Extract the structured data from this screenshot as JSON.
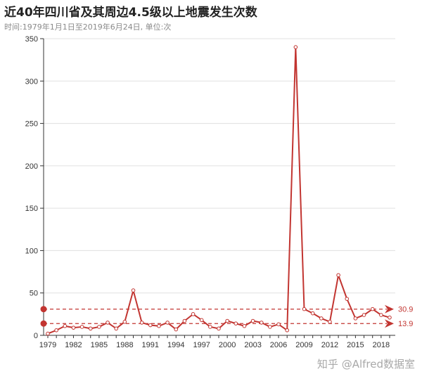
{
  "header": {
    "title": "近40年四川省及其周边4.5级以上地震发生次数",
    "subtitle": "时间:1979年1月1日至2019年6月24日, 单位:次"
  },
  "watermark": "知乎 @Alfred数据室",
  "colors": {
    "series": "#c23531",
    "grid": "#e0e0e0",
    "axis": "#333333"
  },
  "chart_data": {
    "type": "line",
    "title": "近40年四川省及其周边4.5级以上地震发生次数",
    "subtitle": "时间:1979年1月1日至2019年6月24日, 单位:次",
    "x": [
      1979,
      1980,
      1981,
      1982,
      1983,
      1984,
      1985,
      1986,
      1987,
      1988,
      1989,
      1990,
      1991,
      1992,
      1993,
      1994,
      1995,
      1996,
      1997,
      1998,
      1999,
      2000,
      2001,
      2002,
      2003,
      2004,
      2005,
      2006,
      2007,
      2008,
      2009,
      2010,
      2011,
      2012,
      2013,
      2014,
      2015,
      2016,
      2017,
      2018,
      2019
    ],
    "x_tick_labels": [
      "1979",
      "1982",
      "1985",
      "1988",
      "1991",
      "1994",
      "1997",
      "2000",
      "2003",
      "2006",
      "2009",
      "2012",
      "2015",
      "2018"
    ],
    "series": [
      {
        "values": [
          2,
          6,
          11,
          9,
          10,
          8,
          10,
          15,
          8,
          16,
          53,
          15,
          12,
          11,
          15,
          7,
          17,
          25,
          18,
          10,
          8,
          17,
          14,
          11,
          17,
          15,
          10,
          13,
          6,
          340,
          31,
          26,
          20,
          16,
          71,
          43,
          20,
          24,
          31,
          24,
          21
        ]
      }
    ],
    "ylim": [
      0,
      350
    ],
    "yticks": [
      0,
      50,
      100,
      150,
      200,
      250,
      300,
      350
    ],
    "grid": true,
    "reference_lines": [
      {
        "value": 30.9,
        "label": "30.9"
      },
      {
        "value": 13.9,
        "label": "13.9"
      }
    ]
  }
}
